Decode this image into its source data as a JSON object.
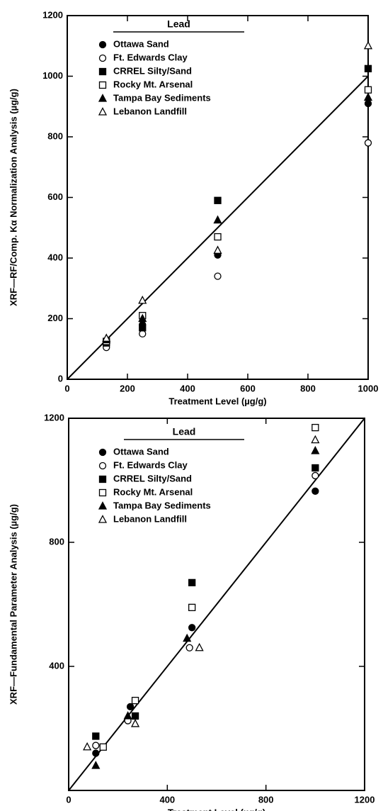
{
  "chart_data": [
    {
      "type": "scatter",
      "y_label": "XRF—RF/Comp. Kα Normalization Analysis (µg/g)",
      "x_label": "Treatment Level (µg/g)",
      "legend_title": "Lead",
      "xlim": [
        0,
        1000
      ],
      "xticks": [
        0,
        200,
        400,
        600,
        800,
        1000
      ],
      "ylim": [
        0,
        1200
      ],
      "yticks": [
        0,
        200,
        400,
        600,
        800,
        1000,
        1200
      ],
      "reference_line": {
        "x": [
          0,
          1000
        ],
        "values": [
          0,
          1000
        ]
      },
      "series": [
        {
          "name": "Ottawa Sand",
          "marker": "circle",
          "filled": true,
          "color": "#000000",
          "x": [
            130,
            250,
            500,
            1000
          ],
          "values": [
            115,
            180,
            410,
            910
          ]
        },
        {
          "name": "Ft. Edwards Clay",
          "marker": "circle",
          "filled": false,
          "color": "#000000",
          "x": [
            130,
            250,
            500,
            1000
          ],
          "values": [
            105,
            150,
            340,
            780
          ]
        },
        {
          "name": "CRREL Silty/Sand",
          "marker": "square",
          "filled": true,
          "color": "#000000",
          "x": [
            130,
            250,
            500,
            1000
          ],
          "values": [
            120,
            170,
            590,
            1025
          ]
        },
        {
          "name": "Rocky Mt. Arsenal",
          "marker": "square",
          "filled": false,
          "color": "#000000",
          "x": [
            130,
            250,
            500,
            1000
          ],
          "values": [
            125,
            210,
            470,
            955
          ]
        },
        {
          "name": "Tampa Bay Sediments",
          "marker": "triangle",
          "filled": true,
          "color": "#000000",
          "x": [
            130,
            250,
            500,
            1000
          ],
          "values": [
            130,
            200,
            525,
            930
          ]
        },
        {
          "name": "Lebanon Landfill",
          "marker": "triangle",
          "filled": false,
          "color": "#000000",
          "x": [
            130,
            250,
            500,
            1000
          ],
          "values": [
            135,
            260,
            425,
            1100
          ]
        }
      ]
    },
    {
      "type": "scatter",
      "y_label": "XRF—Fundamental Parameter Analysis (µg/g)",
      "x_label": "Treatment Level (µg/g)",
      "legend_title": "Lead",
      "xlim": [
        0,
        1200
      ],
      "xticks": [
        0,
        400,
        800,
        1200
      ],
      "ylim": [
        0,
        1200
      ],
      "yticks": [
        400,
        800,
        1200
      ],
      "reference_line": {
        "x": [
          0,
          1200
        ],
        "values": [
          0,
          1200
        ]
      },
      "series": [
        {
          "name": "Ottawa Sand",
          "marker": "circle",
          "filled": true,
          "color": "#000000",
          "x": [
            110,
            250,
            500,
            1000
          ],
          "values": [
            120,
            270,
            525,
            965
          ]
        },
        {
          "name": "Ft. Edwards Clay",
          "marker": "circle",
          "filled": false,
          "color": "#000000",
          "x": [
            110,
            240,
            490,
            1000
          ],
          "values": [
            145,
            225,
            460,
            1015
          ]
        },
        {
          "name": "CRREL Silty/Sand",
          "marker": "square",
          "filled": true,
          "color": "#000000",
          "x": [
            110,
            270,
            500,
            1000
          ],
          "values": [
            175,
            240,
            670,
            1040
          ]
        },
        {
          "name": "Rocky Mt. Arsenal",
          "marker": "square",
          "filled": false,
          "color": "#000000",
          "x": [
            140,
            270,
            500,
            1000
          ],
          "values": [
            140,
            290,
            590,
            1170
          ]
        },
        {
          "name": "Tampa Bay Sediments",
          "marker": "triangle",
          "filled": true,
          "color": "#000000",
          "x": [
            110,
            240,
            480,
            1000
          ],
          "values": [
            80,
            240,
            490,
            1095
          ]
        },
        {
          "name": "Lebanon Landfill",
          "marker": "triangle",
          "filled": false,
          "color": "#000000",
          "x": [
            75,
            270,
            530,
            1000
          ],
          "values": [
            140,
            215,
            460,
            1130
          ]
        }
      ]
    }
  ]
}
